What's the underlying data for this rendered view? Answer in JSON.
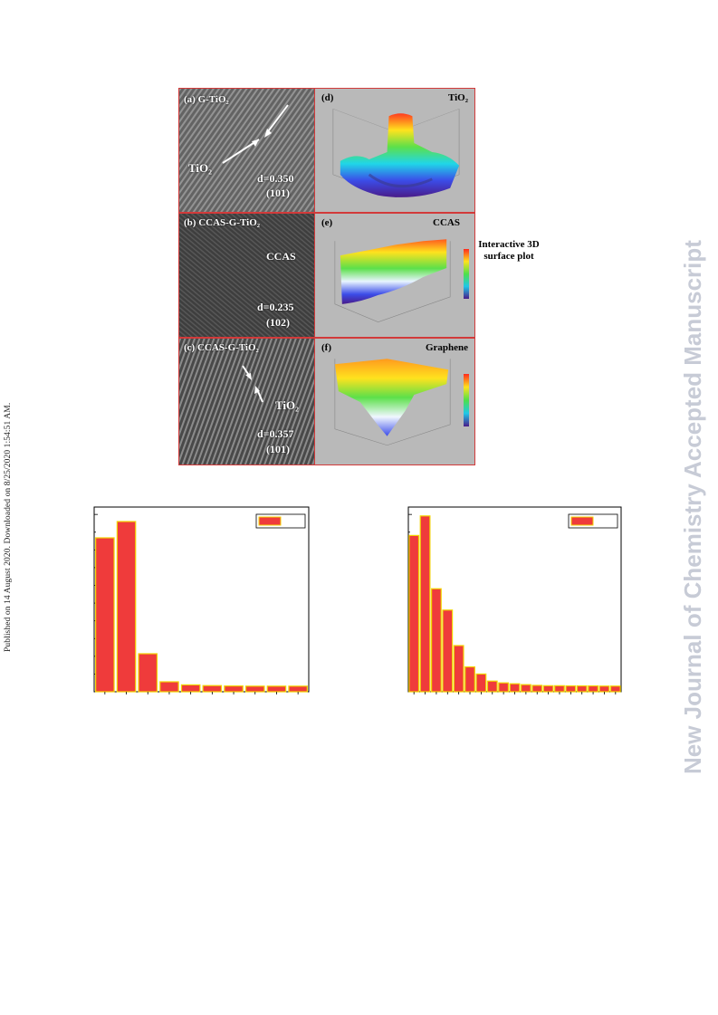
{
  "side_notes": {
    "published": "Published on 14 August 2020. Downloaded on 8/25/2020 1:54:51 AM.",
    "journal": "New Journal of Chemistry Accepted Manuscript"
  },
  "figure": {
    "panel_a": {
      "label": "(a) G-TiO₂",
      "arrow_label": "TiO₂",
      "d_value": "d=0.350",
      "plane": "(101)"
    },
    "panel_b": {
      "label": "(b) CCAS-G-TiO₂",
      "material": "CCAS",
      "d_value": "d=0.235",
      "plane": "(102)"
    },
    "panel_c": {
      "label": "(c) CCAS-G-TiO₂",
      "arrow_label": "TiO₂",
      "d_value": "d=0.357",
      "plane": "(101)"
    },
    "panel_d": {
      "label": "(d)",
      "title": "TiO₂"
    },
    "panel_e": {
      "label": "(e)",
      "title": "CCAS"
    },
    "panel_f": {
      "label": "(f)",
      "title": "Graphene"
    },
    "side_caption": "Interactive 3D surface plot"
  },
  "chart_data": [
    {
      "type": "bar",
      "title": "",
      "xlabel": "",
      "ylabel": "",
      "values": [
        0.85,
        0.94,
        0.21,
        0.055,
        0.038,
        0.034,
        0.032,
        0.031,
        0.031,
        0.031
      ],
      "ylim": [
        0,
        1.02
      ],
      "legend": {
        "position": "top-right",
        "entries": [
          ""
        ]
      },
      "bar_color": "#ef3b3b",
      "edge_color": "#f2d400"
    },
    {
      "type": "bar",
      "title": "",
      "xlabel": "",
      "ylabel": "",
      "values": [
        0.88,
        0.99,
        0.58,
        0.46,
        0.26,
        0.14,
        0.1,
        0.06,
        0.05,
        0.045,
        0.04,
        0.036,
        0.034,
        0.034,
        0.033,
        0.033,
        0.033,
        0.032,
        0.032
      ],
      "ylim": [
        0,
        1.04
      ],
      "legend": {
        "position": "top-right",
        "entries": [
          ""
        ]
      },
      "bar_color": "#ef3b3b",
      "edge_color": "#f2d400"
    }
  ]
}
